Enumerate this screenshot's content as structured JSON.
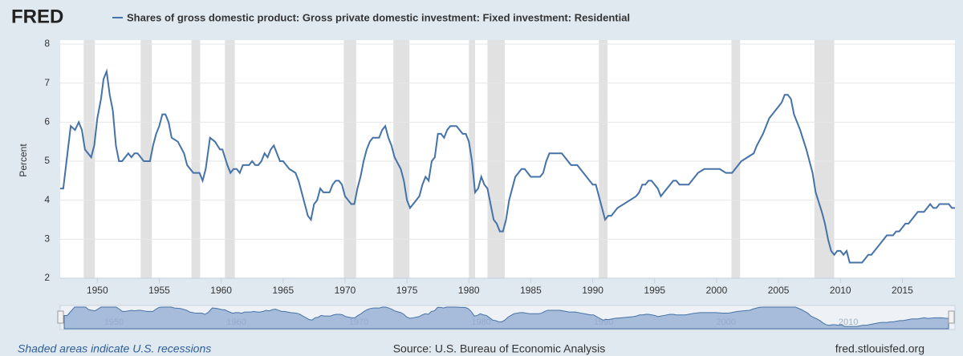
{
  "chart_data": {
    "type": "line",
    "logo": "FRED",
    "ylabel": "Percent",
    "note": "Shaded areas indicate U.S. recessions",
    "source": "Source: U.S. Bureau of Economic Analysis",
    "site": "fred.stlouisfed.org",
    "xlim": [
      1947,
      2019.25
    ],
    "ylim": [
      2,
      8
    ],
    "yticks": [
      2,
      3,
      4,
      5,
      6,
      7,
      8
    ],
    "xticks": [
      1950,
      1955,
      1960,
      1965,
      1970,
      1975,
      1980,
      1985,
      1990,
      1995,
      2000,
      2005,
      2010,
      2015
    ],
    "navigator_ticks": [
      1950,
      1960,
      1970,
      1980,
      1990,
      2000,
      2010
    ],
    "grid": true,
    "recessions": [
      [
        1948.9,
        1949.8
      ],
      [
        1953.5,
        1954.4
      ],
      [
        1957.6,
        1958.3
      ],
      [
        1960.3,
        1961.1
      ],
      [
        1969.9,
        1970.9
      ],
      [
        1973.9,
        1975.2
      ],
      [
        1980.0,
        1980.5
      ],
      [
        1981.5,
        1982.9
      ],
      [
        1990.5,
        1991.2
      ],
      [
        2001.2,
        2001.9
      ],
      [
        2007.9,
        2009.5
      ]
    ],
    "x": [
      1947,
      1947.25,
      1947.85,
      1948.2,
      1948.5,
      1948.75,
      1949,
      1949.5,
      1949.75,
      1950,
      1950.3,
      1950.5,
      1950.75,
      1951,
      1951.25,
      1951.5,
      1951.75,
      1952,
      1952.25,
      1952.5,
      1952.75,
      1953,
      1953.25,
      1953.5,
      1953.75,
      1954.25,
      1954.5,
      1954.75,
      1955,
      1955.25,
      1955.5,
      1955.75,
      1956,
      1956.5,
      1957,
      1957.25,
      1957.75,
      1958.25,
      1958.5,
      1958.75,
      1959.1,
      1959.5,
      1959.9,
      1960.1,
      1960.5,
      1960.75,
      1961,
      1961.25,
      1961.5,
      1961.75,
      1962.25,
      1962.5,
      1962.75,
      1963,
      1963.25,
      1963.5,
      1963.75,
      1964,
      1964.25,
      1964.5,
      1964.75,
      1965,
      1965.5,
      1966,
      1966.25,
      1966.5,
      1966.75,
      1967,
      1967.25,
      1967.5,
      1967.75,
      1968,
      1968.25,
      1968.75,
      1969,
      1969.25,
      1969.5,
      1969.75,
      1970,
      1970.25,
      1970.5,
      1970.75,
      1971,
      1971.25,
      1971.5,
      1971.75,
      1972,
      1972.25,
      1972.75,
      1973,
      1973.25,
      1973.5,
      1973.75,
      1974,
      1974.5,
      1974.75,
      1975,
      1975.25,
      1975.5,
      1976,
      1976.25,
      1976.5,
      1976.75,
      1977,
      1977.25,
      1977.5,
      1977.75,
      1978,
      1978.25,
      1978.5,
      1979,
      1979.5,
      1979.75,
      1980,
      1980.25,
      1980.5,
      1980.75,
      1981,
      1981.25,
      1981.5,
      1981.75,
      1982,
      1982.25,
      1982.5,
      1982.75,
      1983,
      1983.25,
      1983.5,
      1983.75,
      1984,
      1984.25,
      1984.5,
      1984.75,
      1985,
      1985.75,
      1986,
      1986.25,
      1986.5,
      1987.5,
      1988,
      1988.25,
      1988.75,
      1989.25,
      1989.5,
      1990,
      1990.25,
      1990.5,
      1990.75,
      1991,
      1991.25,
      1991.5,
      1991.75,
      1992,
      1992.5,
      1993,
      1993.5,
      1993.75,
      1994,
      1994.25,
      1994.5,
      1994.75,
      1995,
      1995.25,
      1995.5,
      1995.75,
      1996,
      1996.5,
      1996.75,
      1997,
      1997.75,
      1998,
      1998.5,
      1999,
      2000.25,
      2000.75,
      2001.25,
      2001.5,
      2001.75,
      2002,
      2002.5,
      2003,
      2003.25,
      2003.75,
      2004,
      2004.25,
      2005,
      2005.25,
      2005.5,
      2005.75,
      2006,
      2006.25,
      2006.75,
      2007.25,
      2007.75,
      2008,
      2008.5,
      2008.75,
      2009,
      2009.25,
      2009.5,
      2009.75,
      2010,
      2010.25,
      2010.5,
      2010.75,
      2011.75,
      2012,
      2012.25,
      2012.5,
      2012.75,
      2013,
      2013.25,
      2013.5,
      2013.75,
      2014.25,
      2014.5,
      2014.75,
      2015,
      2015.25,
      2015.5,
      2015.75,
      2016,
      2016.25,
      2016.75,
      2017,
      2017.25,
      2017.5,
      2017.75,
      2018,
      2018.75,
      2019,
      2019.25
    ],
    "series": [
      {
        "name": "Shares of gross domestic product: Gross private domestic investment: Fixed investment: Residential",
        "color": "#4572a7",
        "values": [
          4.3,
          4.3,
          5.9,
          5.8,
          6.0,
          5.8,
          5.3,
          5.1,
          5.4,
          6.1,
          6.6,
          7.1,
          7.3,
          6.7,
          6.3,
          5.4,
          5.0,
          5.0,
          5.1,
          5.2,
          5.1,
          5.2,
          5.2,
          5.1,
          5.0,
          5.0,
          5.4,
          5.7,
          5.9,
          6.2,
          6.2,
          6.0,
          5.6,
          5.5,
          5.2,
          4.9,
          4.7,
          4.7,
          4.5,
          4.8,
          5.6,
          5.5,
          5.3,
          5.3,
          4.9,
          4.7,
          4.8,
          4.8,
          4.7,
          4.9,
          4.9,
          5.0,
          4.9,
          4.9,
          5.0,
          5.2,
          5.1,
          5.3,
          5.4,
          5.2,
          5.0,
          5.0,
          4.8,
          4.7,
          4.5,
          4.2,
          3.9,
          3.6,
          3.5,
          3.9,
          4.0,
          4.3,
          4.2,
          4.2,
          4.4,
          4.5,
          4.5,
          4.4,
          4.1,
          4.0,
          3.9,
          3.9,
          4.3,
          4.6,
          5.0,
          5.3,
          5.5,
          5.6,
          5.6,
          5.8,
          5.9,
          5.6,
          5.4,
          5.1,
          4.8,
          4.5,
          4.0,
          3.8,
          3.9,
          4.1,
          4.4,
          4.6,
          4.5,
          5.0,
          5.1,
          5.7,
          5.7,
          5.6,
          5.8,
          5.9,
          5.9,
          5.7,
          5.7,
          5.5,
          5.0,
          4.2,
          4.3,
          4.6,
          4.4,
          4.3,
          3.9,
          3.5,
          3.4,
          3.2,
          3.2,
          3.5,
          4.0,
          4.3,
          4.6,
          4.7,
          4.8,
          4.8,
          4.7,
          4.6,
          4.6,
          4.7,
          5.0,
          5.2,
          5.2,
          5.0,
          4.9,
          4.9,
          4.7,
          4.6,
          4.4,
          4.4,
          4.1,
          3.8,
          3.5,
          3.6,
          3.6,
          3.7,
          3.8,
          3.9,
          4.0,
          4.1,
          4.2,
          4.4,
          4.4,
          4.5,
          4.5,
          4.4,
          4.3,
          4.1,
          4.2,
          4.3,
          4.5,
          4.5,
          4.4,
          4.4,
          4.5,
          4.7,
          4.8,
          4.8,
          4.7,
          4.7,
          4.8,
          4.9,
          5.0,
          5.1,
          5.2,
          5.4,
          5.7,
          5.9,
          6.1,
          6.4,
          6.5,
          6.7,
          6.7,
          6.6,
          6.2,
          5.8,
          5.3,
          4.7,
          4.2,
          3.7,
          3.4,
          3.0,
          2.7,
          2.6,
          2.7,
          2.7,
          2.6,
          2.7,
          2.4,
          2.4,
          2.5,
          2.6,
          2.6,
          2.7,
          2.8,
          2.9,
          3.0,
          3.1,
          3.1,
          3.2,
          3.2,
          3.3,
          3.4,
          3.4,
          3.5,
          3.6,
          3.7,
          3.7,
          3.8,
          3.9,
          3.8,
          3.8,
          3.9,
          3.9,
          3.8,
          3.8
        ]
      }
    ]
  }
}
